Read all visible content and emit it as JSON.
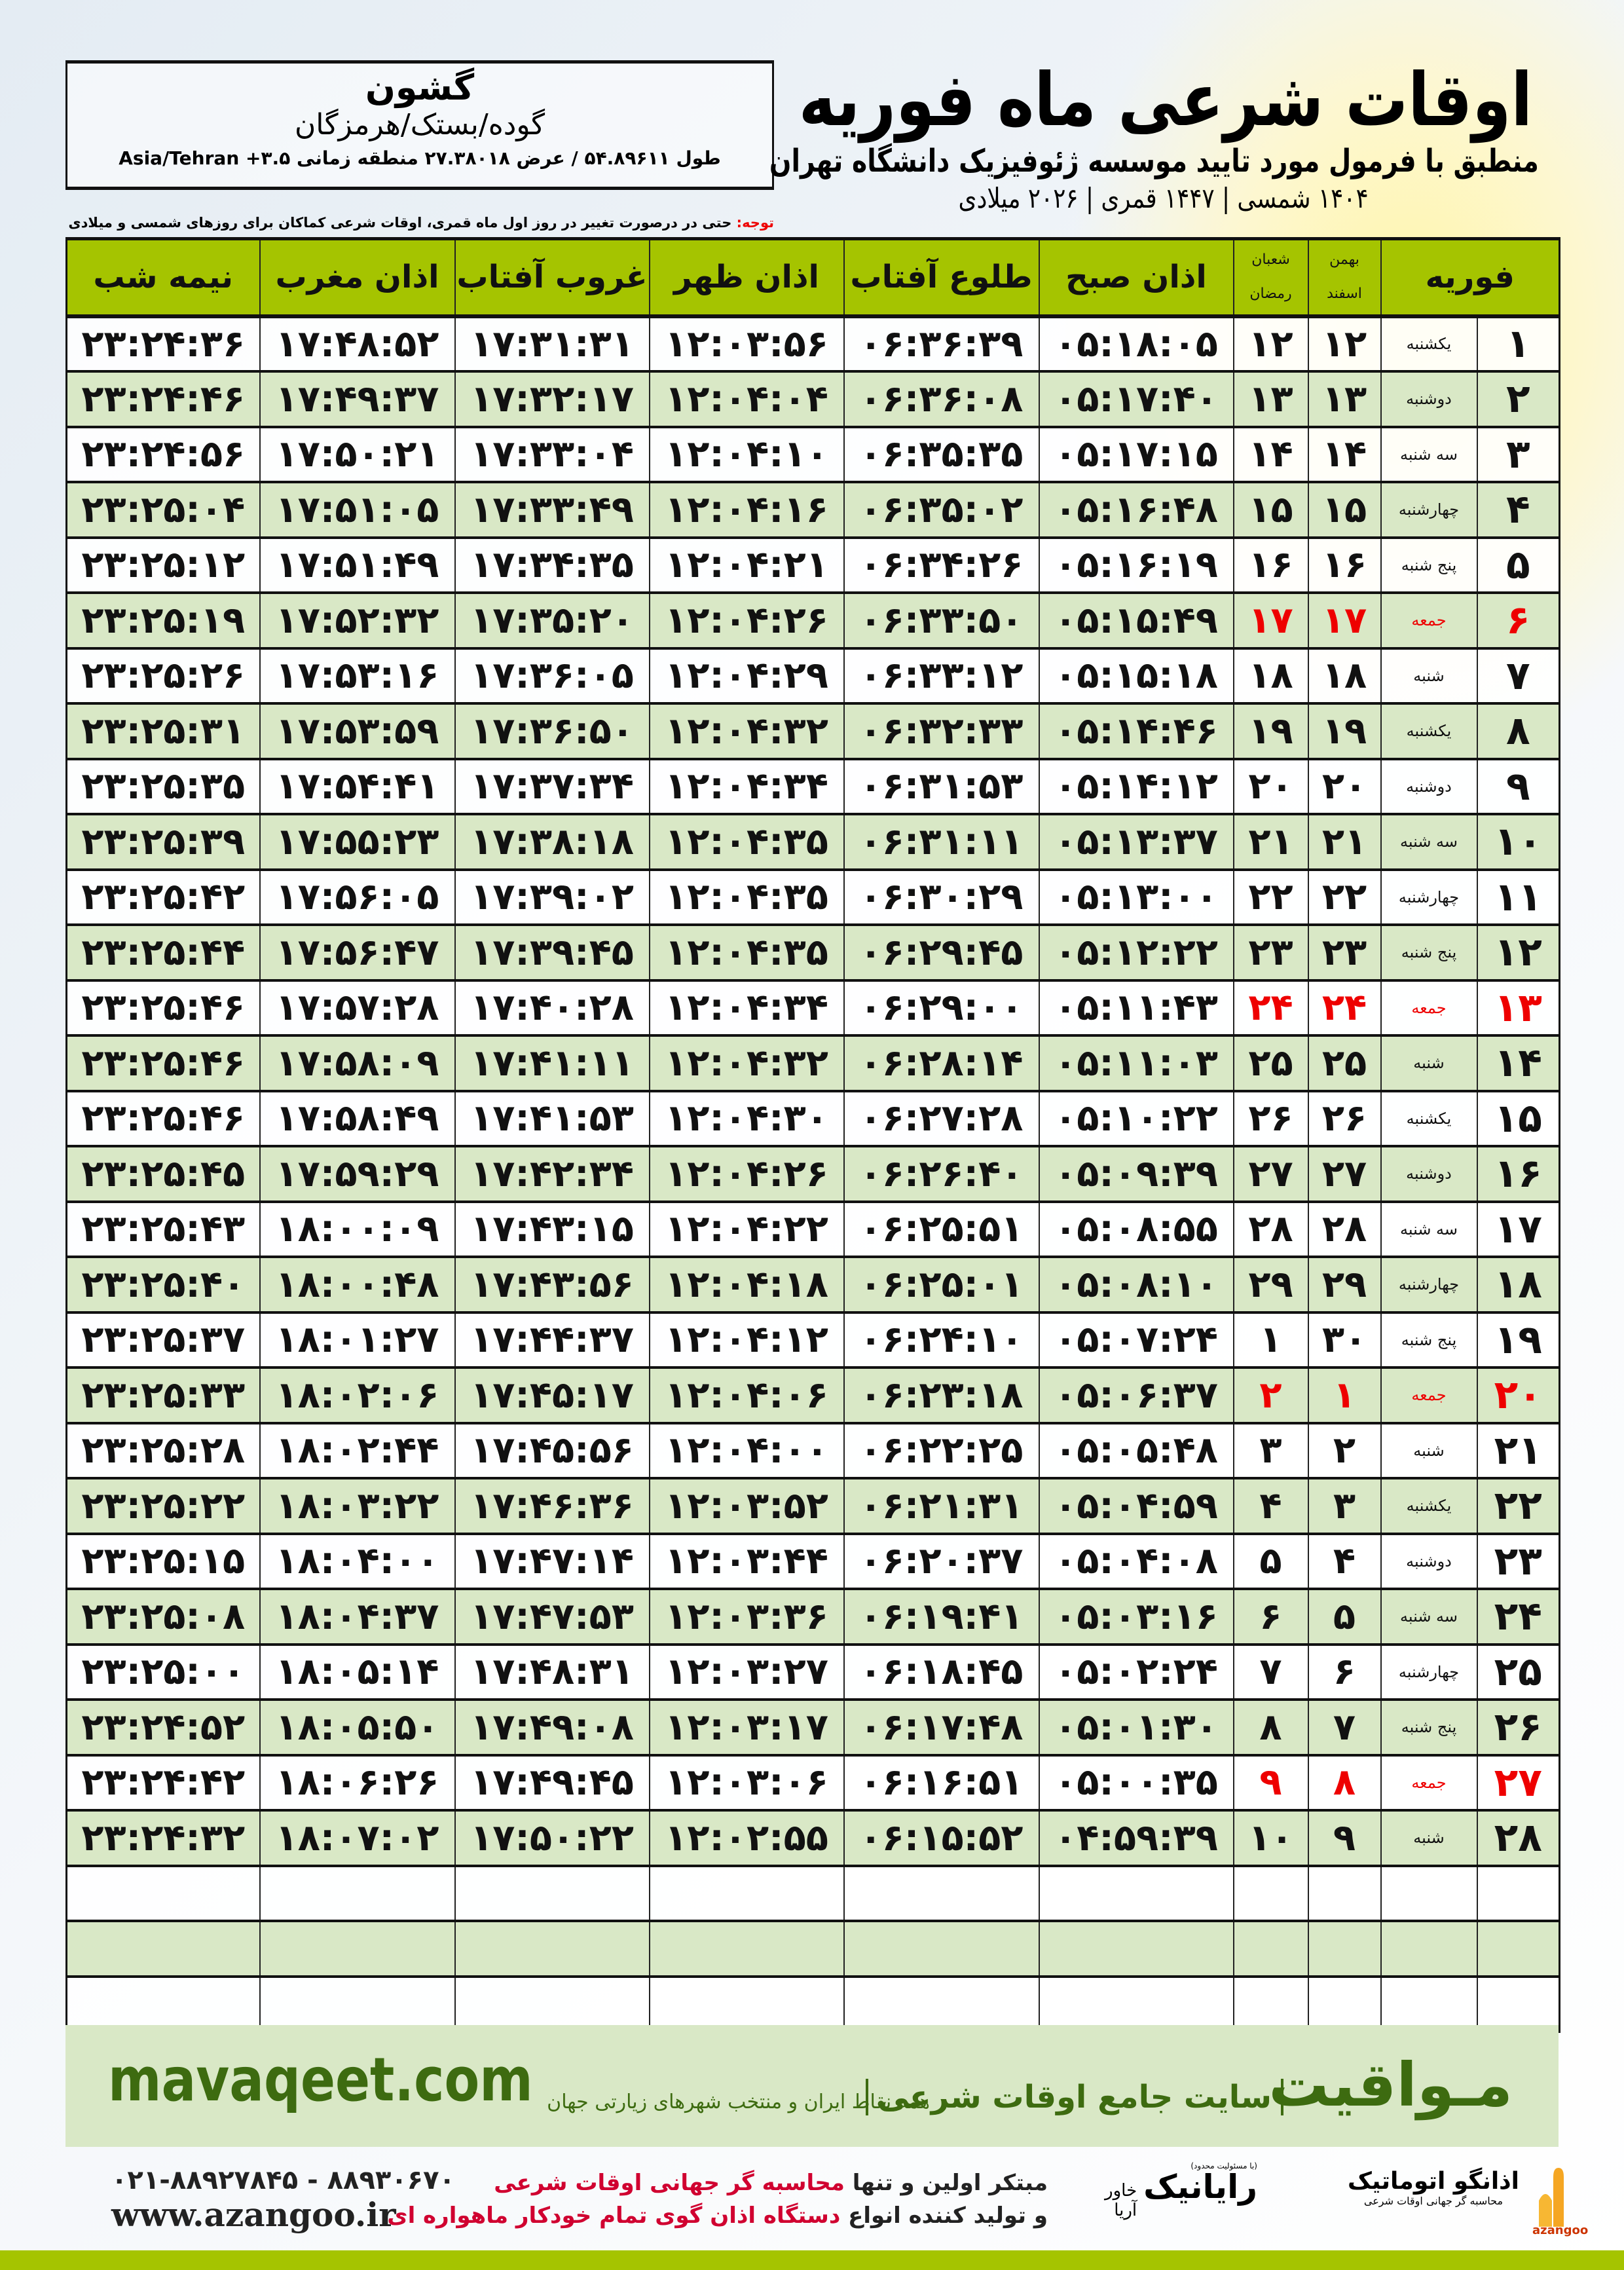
{
  "header": {
    "title": "اوقات شرعی ماه فوریه",
    "subtitle": "منطبق با فرمول مورد تایید موسسه ژئوفیزیک دانشگاه تهران",
    "years": "۱۴۰۴ شمسی | ۱۴۴۷ قمری | ۲۰۲۶ میلادی"
  },
  "location": {
    "name": "گشون",
    "region": "گوده/بستک/هرمزگان",
    "coords": "طول ۵۴.۸۹۶۱۱ / عرض ۲۷.۳۸۰۱۸ منطقه زمانی ۳.۵+ Asia/Tehran"
  },
  "note": {
    "label": "توجه:",
    "text": " حتی در درصورت تغییر در روز اول ماه قمری، اوقات شرعی کماکان برای روزهای شمسی و میلادی معتبر است."
  },
  "colors": {
    "header": "#a5c400",
    "row_alt": "#d9e8c6",
    "friday": "#ee0000",
    "brand": "#3d6b10"
  },
  "table": {
    "headers": {
      "month": "فوریه",
      "shamsi_top": "بهمن",
      "shamsi_bottom": "اسفند",
      "qamari_top": "شعبان",
      "qamari_bottom": "رمضان",
      "times": [
        "اذان صبح",
        "طلوع آفتاب",
        "اذان ظهر",
        "غروب آفتاب",
        "اذان مغرب",
        "نیمه شب"
      ]
    },
    "rows": [
      {
        "day": "۱",
        "weekday": "یکشنبه",
        "shamsi": "۱۲",
        "qamari": "۱۲",
        "times": [
          "۰۵:۱۸:۰۵",
          "۰۶:۳۶:۳۹",
          "۱۲:۰۳:۵۶",
          "۱۷:۳۱:۳۱",
          "۱۷:۴۸:۵۲",
          "۲۳:۲۴:۳۶"
        ]
      },
      {
        "day": "۲",
        "weekday": "دوشنبه",
        "shamsi": "۱۳",
        "qamari": "۱۳",
        "times": [
          "۰۵:۱۷:۴۰",
          "۰۶:۳۶:۰۸",
          "۱۲:۰۴:۰۴",
          "۱۷:۳۲:۱۷",
          "۱۷:۴۹:۳۷",
          "۲۳:۲۴:۴۶"
        ]
      },
      {
        "day": "۳",
        "weekday": "سه شنبه",
        "shamsi": "۱۴",
        "qamari": "۱۴",
        "times": [
          "۰۵:۱۷:۱۵",
          "۰۶:۳۵:۳۵",
          "۱۲:۰۴:۱۰",
          "۱۷:۳۳:۰۴",
          "۱۷:۵۰:۲۱",
          "۲۳:۲۴:۵۶"
        ]
      },
      {
        "day": "۴",
        "weekday": "چهارشنبه",
        "shamsi": "۱۵",
        "qamari": "۱۵",
        "times": [
          "۰۵:۱۶:۴۸",
          "۰۶:۳۵:۰۲",
          "۱۲:۰۴:۱۶",
          "۱۷:۳۳:۴۹",
          "۱۷:۵۱:۰۵",
          "۲۳:۲۵:۰۴"
        ]
      },
      {
        "day": "۵",
        "weekday": "پنج شنبه",
        "shamsi": "۱۶",
        "qamari": "۱۶",
        "times": [
          "۰۵:۱۶:۱۹",
          "۰۶:۳۴:۲۶",
          "۱۲:۰۴:۲۱",
          "۱۷:۳۴:۳۵",
          "۱۷:۵۱:۴۹",
          "۲۳:۲۵:۱۲"
        ]
      },
      {
        "day": "۶",
        "weekday": "جمعه",
        "shamsi": "۱۷",
        "qamari": "۱۷",
        "friday": true,
        "times": [
          "۰۵:۱۵:۴۹",
          "۰۶:۳۳:۵۰",
          "۱۲:۰۴:۲۶",
          "۱۷:۳۵:۲۰",
          "۱۷:۵۲:۳۲",
          "۲۳:۲۵:۱۹"
        ]
      },
      {
        "day": "۷",
        "weekday": "شنبه",
        "shamsi": "۱۸",
        "qamari": "۱۸",
        "times": [
          "۰۵:۱۵:۱۸",
          "۰۶:۳۳:۱۲",
          "۱۲:۰۴:۲۹",
          "۱۷:۳۶:۰۵",
          "۱۷:۵۳:۱۶",
          "۲۳:۲۵:۲۶"
        ]
      },
      {
        "day": "۸",
        "weekday": "یکشنبه",
        "shamsi": "۱۹",
        "qamari": "۱۹",
        "times": [
          "۰۵:۱۴:۴۶",
          "۰۶:۳۲:۳۳",
          "۱۲:۰۴:۳۲",
          "۱۷:۳۶:۵۰",
          "۱۷:۵۳:۵۹",
          "۲۳:۲۵:۳۱"
        ]
      },
      {
        "day": "۹",
        "weekday": "دوشنبه",
        "shamsi": "۲۰",
        "qamari": "۲۰",
        "times": [
          "۰۵:۱۴:۱۲",
          "۰۶:۳۱:۵۳",
          "۱۲:۰۴:۳۴",
          "۱۷:۳۷:۳۴",
          "۱۷:۵۴:۴۱",
          "۲۳:۲۵:۳۵"
        ]
      },
      {
        "day": "۱۰",
        "weekday": "سه شنبه",
        "shamsi": "۲۱",
        "qamari": "۲۱",
        "times": [
          "۰۵:۱۳:۳۷",
          "۰۶:۳۱:۱۱",
          "۱۲:۰۴:۳۵",
          "۱۷:۳۸:۱۸",
          "۱۷:۵۵:۲۳",
          "۲۳:۲۵:۳۹"
        ]
      },
      {
        "day": "۱۱",
        "weekday": "چهارشنبه",
        "shamsi": "۲۲",
        "qamari": "۲۲",
        "times": [
          "۰۵:۱۳:۰۰",
          "۰۶:۳۰:۲۹",
          "۱۲:۰۴:۳۵",
          "۱۷:۳۹:۰۲",
          "۱۷:۵۶:۰۵",
          "۲۳:۲۵:۴۲"
        ]
      },
      {
        "day": "۱۲",
        "weekday": "پنج شنبه",
        "shamsi": "۲۳",
        "qamari": "۲۳",
        "times": [
          "۰۵:۱۲:۲۲",
          "۰۶:۲۹:۴۵",
          "۱۲:۰۴:۳۵",
          "۱۷:۳۹:۴۵",
          "۱۷:۵۶:۴۷",
          "۲۳:۲۵:۴۴"
        ]
      },
      {
        "day": "۱۳",
        "weekday": "جمعه",
        "shamsi": "۲۴",
        "qamari": "۲۴",
        "friday": true,
        "times": [
          "۰۵:۱۱:۴۳",
          "۰۶:۲۹:۰۰",
          "۱۲:۰۴:۳۴",
          "۱۷:۴۰:۲۸",
          "۱۷:۵۷:۲۸",
          "۲۳:۲۵:۴۶"
        ]
      },
      {
        "day": "۱۴",
        "weekday": "شنبه",
        "shamsi": "۲۵",
        "qamari": "۲۵",
        "times": [
          "۰۵:۱۱:۰۳",
          "۰۶:۲۸:۱۴",
          "۱۲:۰۴:۳۲",
          "۱۷:۴۱:۱۱",
          "۱۷:۵۸:۰۹",
          "۲۳:۲۵:۴۶"
        ]
      },
      {
        "day": "۱۵",
        "weekday": "یکشنبه",
        "shamsi": "۲۶",
        "qamari": "۲۶",
        "times": [
          "۰۵:۱۰:۲۲",
          "۰۶:۲۷:۲۸",
          "۱۲:۰۴:۳۰",
          "۱۷:۴۱:۵۳",
          "۱۷:۵۸:۴۹",
          "۲۳:۲۵:۴۶"
        ]
      },
      {
        "day": "۱۶",
        "weekday": "دوشنبه",
        "shamsi": "۲۷",
        "qamari": "۲۷",
        "times": [
          "۰۵:۰۹:۳۹",
          "۰۶:۲۶:۴۰",
          "۱۲:۰۴:۲۶",
          "۱۷:۴۲:۳۴",
          "۱۷:۵۹:۲۹",
          "۲۳:۲۵:۴۵"
        ]
      },
      {
        "day": "۱۷",
        "weekday": "سه شنبه",
        "shamsi": "۲۸",
        "qamari": "۲۸",
        "times": [
          "۰۵:۰۸:۵۵",
          "۰۶:۲۵:۵۱",
          "۱۲:۰۴:۲۲",
          "۱۷:۴۳:۱۵",
          "۱۸:۰۰:۰۹",
          "۲۳:۲۵:۴۳"
        ]
      },
      {
        "day": "۱۸",
        "weekday": "چهارشنبه",
        "shamsi": "۲۹",
        "qamari": "۲۹",
        "times": [
          "۰۵:۰۸:۱۰",
          "۰۶:۲۵:۰۱",
          "۱۲:۰۴:۱۸",
          "۱۷:۴۳:۵۶",
          "۱۸:۰۰:۴۸",
          "۲۳:۲۵:۴۰"
        ]
      },
      {
        "day": "۱۹",
        "weekday": "پنج شنبه",
        "shamsi": "۳۰",
        "qamari": "۱",
        "times": [
          "۰۵:۰۷:۲۴",
          "۰۶:۲۴:۱۰",
          "۱۲:۰۴:۱۲",
          "۱۷:۴۴:۳۷",
          "۱۸:۰۱:۲۷",
          "۲۳:۲۵:۳۷"
        ]
      },
      {
        "day": "۲۰",
        "weekday": "جمعه",
        "shamsi": "۱",
        "qamari": "۲",
        "friday": true,
        "times": [
          "۰۵:۰۶:۳۷",
          "۰۶:۲۳:۱۸",
          "۱۲:۰۴:۰۶",
          "۱۷:۴۵:۱۷",
          "۱۸:۰۲:۰۶",
          "۲۳:۲۵:۳۳"
        ]
      },
      {
        "day": "۲۱",
        "weekday": "شنبه",
        "shamsi": "۲",
        "qamari": "۳",
        "times": [
          "۰۵:۰۵:۴۸",
          "۰۶:۲۲:۲۵",
          "۱۲:۰۴:۰۰",
          "۱۷:۴۵:۵۶",
          "۱۸:۰۲:۴۴",
          "۲۳:۲۵:۲۸"
        ]
      },
      {
        "day": "۲۲",
        "weekday": "یکشنبه",
        "shamsi": "۳",
        "qamari": "۴",
        "times": [
          "۰۵:۰۴:۵۹",
          "۰۶:۲۱:۳۱",
          "۱۲:۰۳:۵۲",
          "۱۷:۴۶:۳۶",
          "۱۸:۰۳:۲۲",
          "۲۳:۲۵:۲۲"
        ]
      },
      {
        "day": "۲۳",
        "weekday": "دوشنبه",
        "shamsi": "۴",
        "qamari": "۵",
        "times": [
          "۰۵:۰۴:۰۸",
          "۰۶:۲۰:۳۷",
          "۱۲:۰۳:۴۴",
          "۱۷:۴۷:۱۴",
          "۱۸:۰۴:۰۰",
          "۲۳:۲۵:۱۵"
        ]
      },
      {
        "day": "۲۴",
        "weekday": "سه شنبه",
        "shamsi": "۵",
        "qamari": "۶",
        "times": [
          "۰۵:۰۳:۱۶",
          "۰۶:۱۹:۴۱",
          "۱۲:۰۳:۳۶",
          "۱۷:۴۷:۵۳",
          "۱۸:۰۴:۳۷",
          "۲۳:۲۵:۰۸"
        ]
      },
      {
        "day": "۲۵",
        "weekday": "چهارشنبه",
        "shamsi": "۶",
        "qamari": "۷",
        "times": [
          "۰۵:۰۲:۲۴",
          "۰۶:۱۸:۴۵",
          "۱۲:۰۳:۲۷",
          "۱۷:۴۸:۳۱",
          "۱۸:۰۵:۱۴",
          "۲۳:۲۵:۰۰"
        ]
      },
      {
        "day": "۲۶",
        "weekday": "پنج شنبه",
        "shamsi": "۷",
        "qamari": "۸",
        "times": [
          "۰۵:۰۱:۳۰",
          "۰۶:۱۷:۴۸",
          "۱۲:۰۳:۱۷",
          "۱۷:۴۹:۰۸",
          "۱۸:۰۵:۵۰",
          "۲۳:۲۴:۵۲"
        ]
      },
      {
        "day": "۲۷",
        "weekday": "جمعه",
        "shamsi": "۸",
        "qamari": "۹",
        "friday": true,
        "times": [
          "۰۵:۰۰:۳۵",
          "۰۶:۱۶:۵۱",
          "۱۲:۰۳:۰۶",
          "۱۷:۴۹:۴۵",
          "۱۸:۰۶:۲۶",
          "۲۳:۲۴:۴۲"
        ]
      },
      {
        "day": "۲۸",
        "weekday": "شنبه",
        "shamsi": "۹",
        "qamari": "۱۰",
        "times": [
          "۰۴:۵۹:۳۹",
          "۰۶:۱۵:۵۲",
          "۱۲:۰۲:۵۵",
          "۱۷:۵۰:۲۲",
          "۱۸:۰۷:۰۲",
          "۲۳:۲۴:۳۲"
        ]
      }
    ]
  },
  "footer": {
    "brand": "مـواقیت",
    "slogan": "سایت جامع اوقات شرعی",
    "coverage": "همه نقاط ایران و منتخب شهرهای زیارتی جهان",
    "site": "mavaqeet.com",
    "promo_line1_a": "مبتکر اولین و تنها ",
    "promo_line1_b": "محاسبه گر جهانی اوقات شرعی",
    "promo_line2_a": "و تولید کننده انواع ",
    "promo_line2_b": "دستگاه اذان گوی تمام خودکار ماهواره ای",
    "phone": "۰۲۱-۸۸۹۲۷۸۴۵ - ۸۸۹۳۰۶۷۰",
    "web": "www.azangoo.ir",
    "logo_azangoo": "اذانگو اتوماتیک",
    "logo_azangoo_sub": "محاسبه گر جهانی اوقات شرعی",
    "logo_azangoo_latin": "azangoo",
    "logo_rayanik": "رایانیک",
    "logo_rayanik_sub": "خاور آریا",
    "logo_rayanik_note": "(با مسئولیت محدود)"
  }
}
